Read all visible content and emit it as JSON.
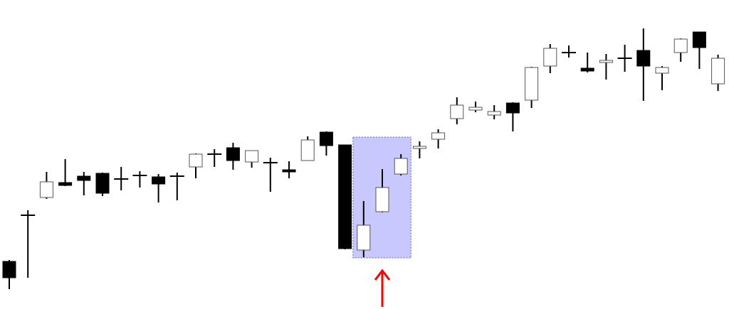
{
  "chart_data": {
    "type": "candlestick",
    "title": "",
    "xlabel": "",
    "ylabel": "",
    "axes_visible": false,
    "grid": false,
    "ylim": [
      103,
      140.5
    ],
    "fields": [
      "open",
      "high",
      "low",
      "close"
    ],
    "candles": [
      [
        107.2,
        107.4,
        103.3,
        104.9
      ],
      [
        113.7,
        114.4,
        104.9,
        113.7
      ],
      [
        116.2,
        119.8,
        116.0,
        118.4
      ],
      [
        118.3,
        121.6,
        117.8,
        117.9
      ],
      [
        119.2,
        119.8,
        116.5,
        118.6
      ],
      [
        119.6,
        119.7,
        116.4,
        116.8
      ],
      [
        118.8,
        120.5,
        117.2,
        118.8
      ],
      [
        119.3,
        119.9,
        117.6,
        119.3
      ],
      [
        119.1,
        119.5,
        115.5,
        118.1
      ],
      [
        119.2,
        119.7,
        115.8,
        119.2
      ],
      [
        120.5,
        122.4,
        118.9,
        122.3
      ],
      [
        122.3,
        123.0,
        120.5,
        122.3
      ],
      [
        123.2,
        123.9,
        120.1,
        121.4
      ],
      [
        121.2,
        122.8,
        120.4,
        122.8
      ],
      [
        121.1,
        121.8,
        117.0,
        121.1
      ],
      [
        120.1,
        121.3,
        118.9,
        119.8
      ],
      [
        121.4,
        124.8,
        121.4,
        124.3
      ],
      [
        125.4,
        125.5,
        122.1,
        123.5
      ],
      [
        123.6,
        123.6,
        108.9,
        109.0
      ],
      [
        108.8,
        115.7,
        107.8,
        112.3
      ],
      [
        114.2,
        120.2,
        114.1,
        117.6
      ],
      [
        119.5,
        122.3,
        119.3,
        121.7
      ],
      [
        123.1,
        124.1,
        121.7,
        123.4
      ],
      [
        124.4,
        125.8,
        123.1,
        125.3
      ],
      [
        127.3,
        130.3,
        126.5,
        129.2
      ],
      [
        128.5,
        129.7,
        128.2,
        128.9
      ],
      [
        127.8,
        129.2,
        127.2,
        128.3
      ],
      [
        129.5,
        129.6,
        125.5,
        128.1
      ],
      [
        129.9,
        134.6,
        128.8,
        134.5
      ],
      [
        134.7,
        137.8,
        133.7,
        137.2
      ],
      [
        136.6,
        137.6,
        135.9,
        136.6
      ],
      [
        134.4,
        136.6,
        133.8,
        134.0
      ],
      [
        135.2,
        136.4,
        132.8,
        135.5
      ],
      [
        135.8,
        137.7,
        133.9,
        135.8
      ],
      [
        136.9,
        140.0,
        129.8,
        134.7
      ],
      [
        133.7,
        134.7,
        131.3,
        134.5
      ],
      [
        136.6,
        138.6,
        135.3,
        138.5
      ],
      [
        139.5,
        139.5,
        134.3,
        137.3
      ],
      [
        132.2,
        136.3,
        131.2,
        135.8
      ]
    ],
    "highlight": {
      "from_index": 19,
      "to_index": 21,
      "fill": "#c8c8ff",
      "border": "#5a5ae6"
    },
    "annotation": {
      "type": "arrow-up",
      "at_index": 20,
      "color": "#ff0000"
    },
    "colors": {
      "up_fill": "#ffffff",
      "down_fill": "#000000",
      "wick": "#000000",
      "up_border": "#555555"
    }
  }
}
